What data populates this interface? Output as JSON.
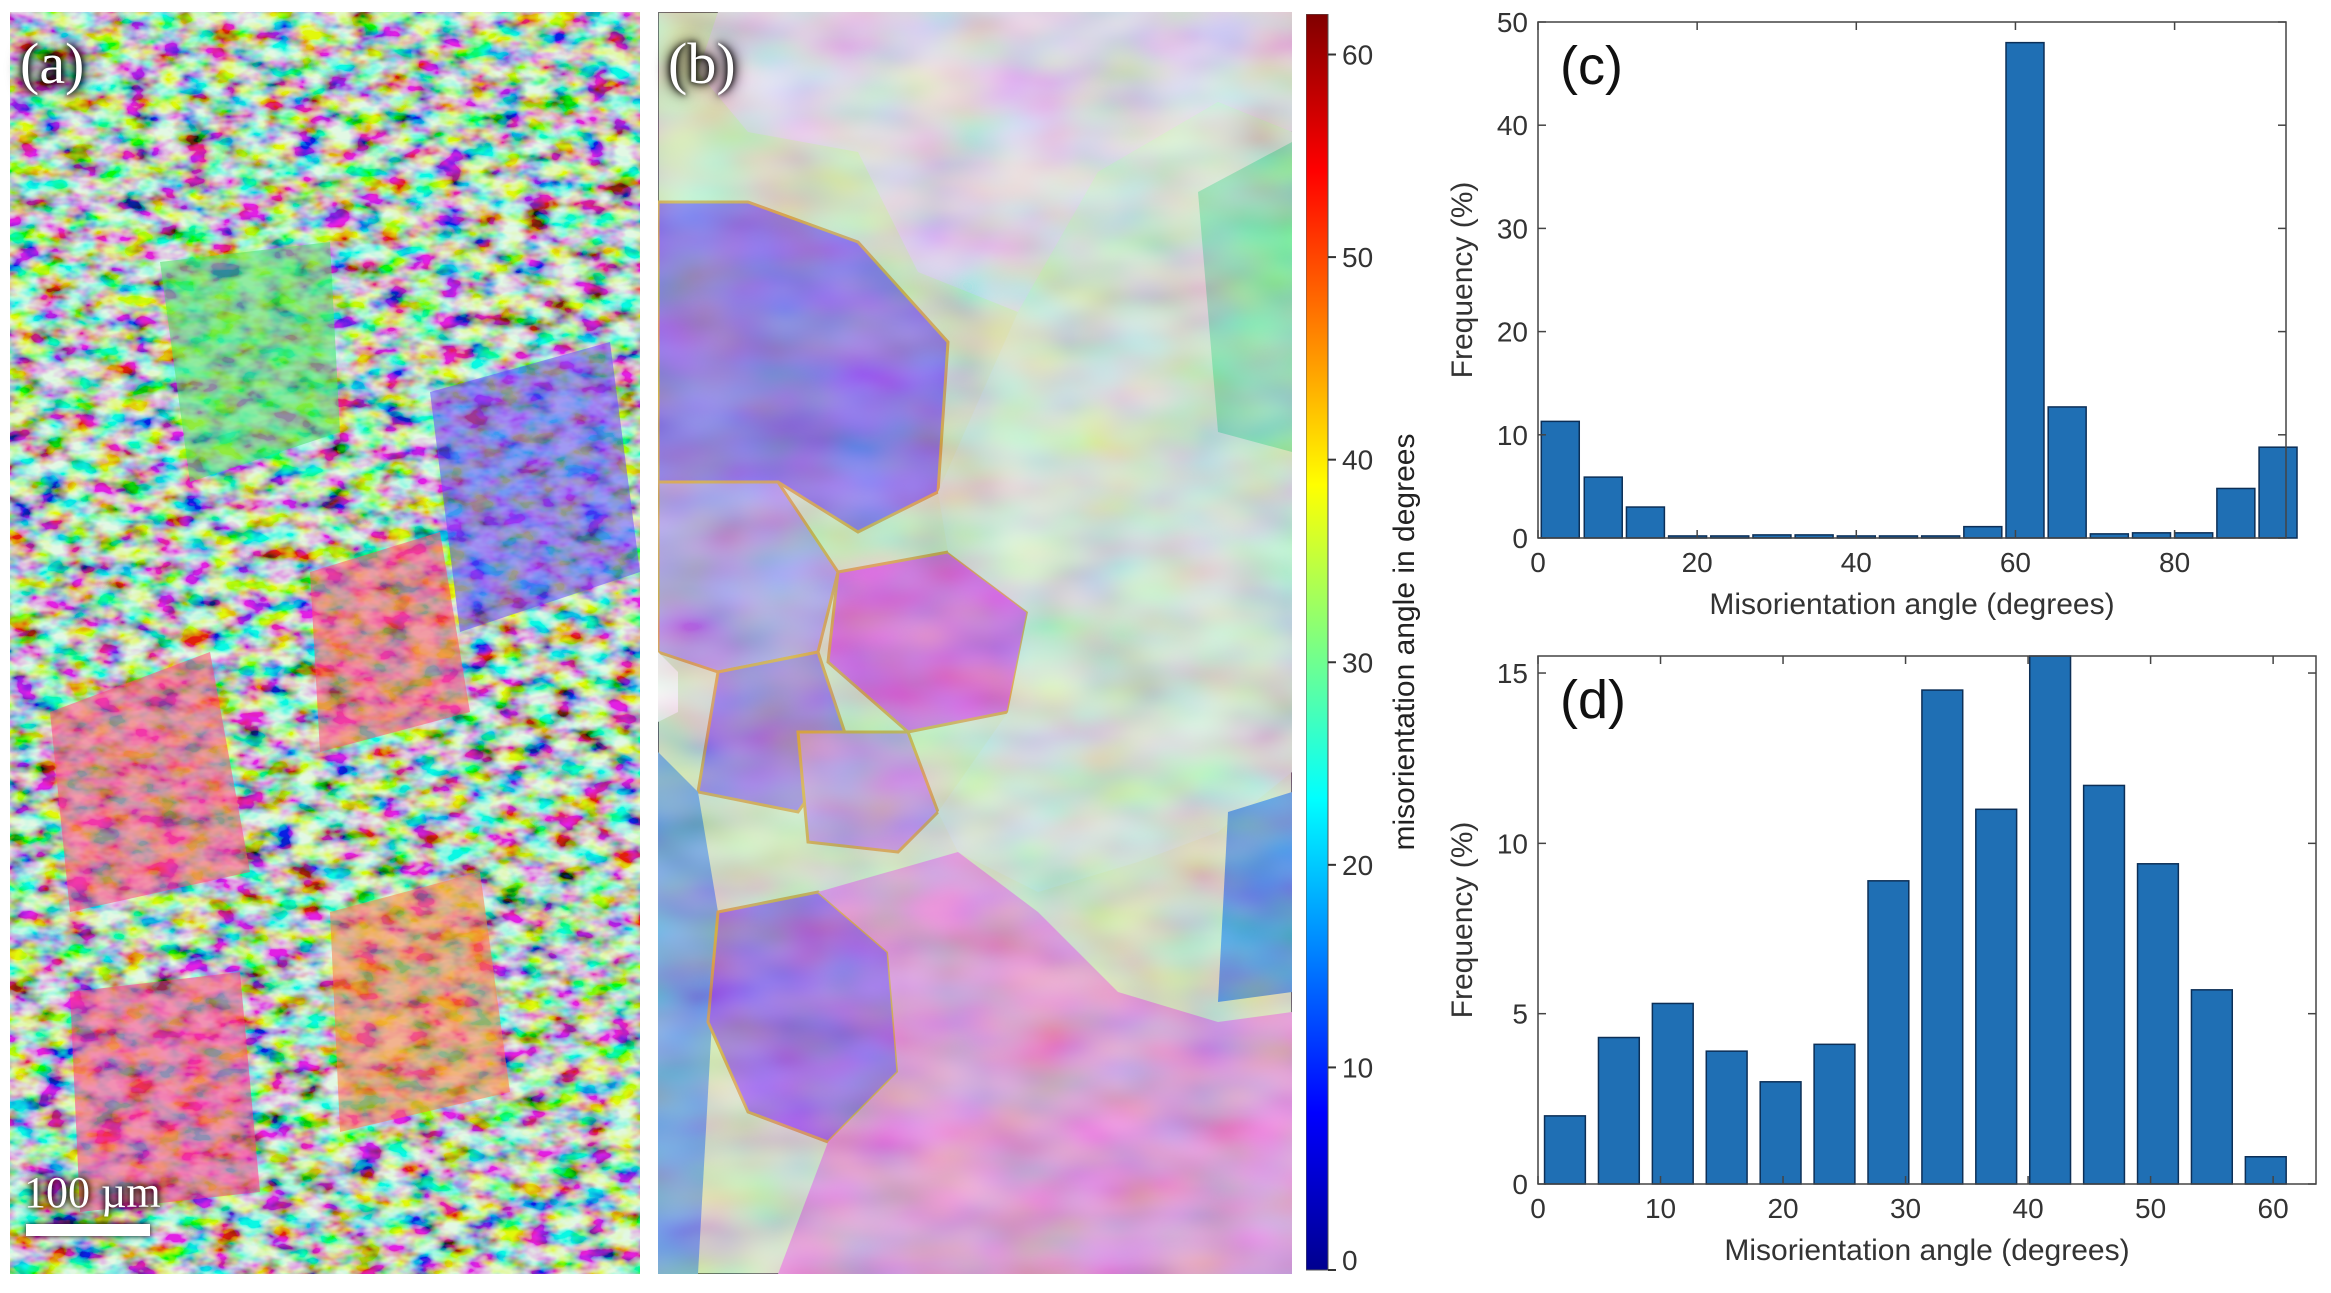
{
  "figure": {
    "panel_a_label": "(a)",
    "panel_b_label": "(b)",
    "scale_bar_label": "100 µm"
  },
  "colorbar": {
    "label": "misorientation angle in degrees",
    "ticks": [
      "0",
      "10",
      "20",
      "30",
      "40",
      "50",
      "60"
    ],
    "range": [
      0,
      62
    ]
  },
  "chart_data": [
    {
      "type": "bar",
      "panel_label": "(c)",
      "xlabel": "Misorientation angle (degrees)",
      "ylabel": "Frequency (%)",
      "xlim": [
        0,
        94
      ],
      "ylim": [
        0,
        50
      ],
      "xticks": [
        0,
        20,
        40,
        60,
        80
      ],
      "yticks": [
        0,
        10,
        20,
        30,
        40,
        50
      ],
      "bin_width": 5.3,
      "centers": [
        2.8,
        8.2,
        13.5,
        18.8,
        24.1,
        29.4,
        34.7,
        40.0,
        45.3,
        50.6,
        55.9,
        61.2,
        66.5,
        71.8,
        77.1,
        82.4,
        87.7,
        93.0
      ],
      "values": [
        11.3,
        5.9,
        3.0,
        0.2,
        0.2,
        0.3,
        0.3,
        0.2,
        0.2,
        0.2,
        1.1,
        48.0,
        12.7,
        0.4,
        0.5,
        0.5,
        4.8,
        8.8
      ],
      "color": "#1f6fb4"
    },
    {
      "type": "bar",
      "panel_label": "(d)",
      "xlabel": "Misorientation angle (degrees)",
      "ylabel": "Frequency (%)",
      "xlim": [
        0,
        63.5
      ],
      "ylim": [
        0,
        15.5
      ],
      "xticks": [
        0,
        10,
        20,
        30,
        40,
        50,
        60
      ],
      "yticks": [
        0,
        5,
        10,
        15
      ],
      "bin_width": 3.7,
      "centers": [
        2.2,
        6.6,
        11.0,
        15.4,
        19.8,
        24.2,
        28.6,
        33.0,
        37.4,
        41.8,
        46.2,
        50.6,
        55.0,
        59.4
      ],
      "values": [
        2.0,
        4.3,
        5.3,
        3.9,
        3.0,
        4.1,
        8.9,
        14.5,
        11.0,
        15.6,
        11.7,
        9.4,
        5.7,
        0.8
      ],
      "color": "#1f6fb4"
    }
  ]
}
